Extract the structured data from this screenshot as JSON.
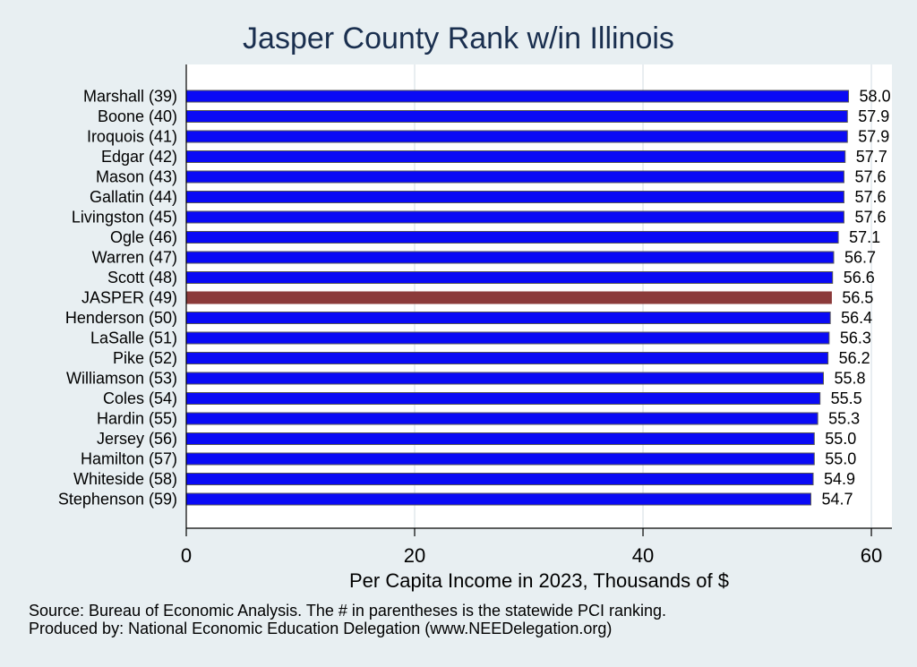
{
  "chart_data": {
    "type": "bar",
    "orientation": "horizontal",
    "title": "Jasper County Rank w/in Illinois",
    "xlabel": "Per Capita Income in 2023, Thousands of $",
    "ylabel": "",
    "xlim": [
      0,
      61.8
    ],
    "xticks": [
      0,
      20,
      40,
      60
    ],
    "grid": true,
    "categories": [
      "Marshall (39)",
      "Boone (40)",
      "Iroquois (41)",
      "Edgar (42)",
      "Mason (43)",
      "Gallatin (44)",
      "Livingston (45)",
      "Ogle (46)",
      "Warren (47)",
      "Scott (48)",
      "JASPER (49)",
      "Henderson (50)",
      "LaSalle (51)",
      "Pike (52)",
      "Williamson (53)",
      "Coles (54)",
      "Hardin (55)",
      "Jersey (56)",
      "Hamilton (57)",
      "Whiteside (58)",
      "Stephenson (59)"
    ],
    "values": [
      58.0,
      57.9,
      57.9,
      57.7,
      57.6,
      57.6,
      57.6,
      57.1,
      56.7,
      56.6,
      56.5,
      56.4,
      56.3,
      56.2,
      55.8,
      55.5,
      55.3,
      55.0,
      55.0,
      54.9,
      54.7
    ],
    "value_labels": [
      "58.0",
      "57.9",
      "57.9",
      "57.7",
      "57.6",
      "57.6",
      "57.6",
      "57.1",
      "56.7",
      "56.6",
      "56.5",
      "56.4",
      "56.3",
      "56.2",
      "55.8",
      "55.5",
      "55.3",
      "55.0",
      "55.0",
      "54.9",
      "54.7"
    ],
    "highlight": "JASPER (49)",
    "colors": {
      "bar": "#0a0af5",
      "highlight": "#8b3a3a",
      "bar_edge": "#555555",
      "grid": "#e1e8ec",
      "plot_bg": "#ffffff",
      "page_bg": "#e8eff2",
      "title": "#1a2f4f"
    }
  },
  "footer": {
    "source": "Source: Bureau of Economic Analysis. The # in parentheses is the statewide PCI ranking.",
    "produced": "Produced by: National Economic Education Delegation (www.NEEDelegation.org)"
  }
}
